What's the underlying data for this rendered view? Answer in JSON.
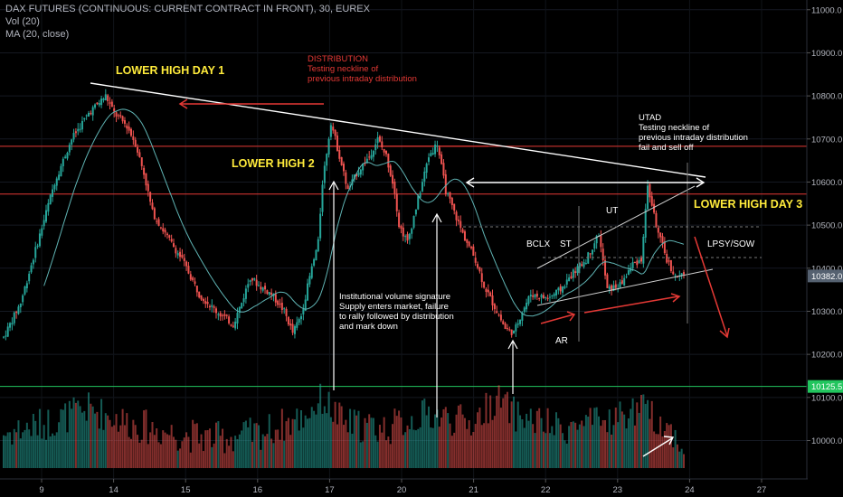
{
  "legend": {
    "symbol": "DAX FUTURES (CONTINUOUS: CURRENT CONTRACT IN FRONT), 30, EUREX",
    "volume": "Vol (20)",
    "ma": "MA (20, close)"
  },
  "colors": {
    "up": "#26a69a",
    "down": "#ef5350",
    "ma": "#5fb3b3",
    "background": "#000000",
    "resistance": "#e53935",
    "support": "#22c55e",
    "annotation_yellow": "#ffeb3b",
    "annotation_red": "#e53935",
    "price_badge": "#556170"
  },
  "chart_data": {
    "type": "candlestick",
    "y_axis": {
      "ticks": [
        11000,
        10900,
        10800,
        10700,
        10600,
        10500,
        10400,
        10300,
        10200,
        10100,
        10000
      ],
      "tick_labels": [
        "11000.0",
        "10900.0",
        "10800.0",
        "10700.0",
        "10600.0",
        "10500.0",
        "10400.0",
        "10300.0",
        "10200.0",
        "10100.0",
        "10000.0"
      ],
      "ylim": [
        9936,
        11010
      ]
    },
    "x_axis": {
      "ticks": [
        "9",
        "14",
        "15",
        "16",
        "17",
        "20",
        "21",
        "22",
        "23",
        "24",
        "27"
      ]
    },
    "price_badges": [
      {
        "label": "10382.0",
        "value": 10382
      },
      {
        "label": "10125.5",
        "value": 10125.5
      }
    ],
    "horizontal_levels": [
      {
        "value": 10683,
        "color": "#e53935"
      },
      {
        "value": 10572,
        "color": "#e53935"
      },
      {
        "value": 10125.5,
        "color": "#22c55e"
      }
    ],
    "price_path": [
      [
        0,
        10240
      ],
      [
        8,
        10320
      ],
      [
        16,
        10460
      ],
      [
        24,
        10600
      ],
      [
        32,
        10700
      ],
      [
        40,
        10760
      ],
      [
        48,
        10800
      ],
      [
        52,
        10760
      ],
      [
        58,
        10730
      ],
      [
        62,
        10690
      ],
      [
        66,
        10620
      ],
      [
        70,
        10530
      ],
      [
        76,
        10480
      ],
      [
        84,
        10420
      ],
      [
        92,
        10340
      ],
      [
        100,
        10300
      ],
      [
        108,
        10270
      ],
      [
        112,
        10320
      ],
      [
        116,
        10380
      ],
      [
        120,
        10360
      ],
      [
        126,
        10340
      ],
      [
        132,
        10300
      ],
      [
        136,
        10250
      ],
      [
        140,
        10290
      ],
      [
        144,
        10380
      ],
      [
        148,
        10460
      ],
      [
        150,
        10600
      ],
      [
        154,
        10740
      ],
      [
        158,
        10660
      ],
      [
        162,
        10580
      ],
      [
        166,
        10620
      ],
      [
        172,
        10660
      ],
      [
        176,
        10700
      ],
      [
        180,
        10660
      ],
      [
        184,
        10580
      ],
      [
        186,
        10500
      ],
      [
        190,
        10460
      ],
      [
        196,
        10580
      ],
      [
        200,
        10660
      ],
      [
        204,
        10690
      ],
      [
        208,
        10580
      ],
      [
        212,
        10530
      ],
      [
        216,
        10480
      ],
      [
        222,
        10420
      ],
      [
        226,
        10360
      ],
      [
        232,
        10300
      ],
      [
        236,
        10260
      ],
      [
        240,
        10250
      ],
      [
        244,
        10300
      ],
      [
        248,
        10340
      ],
      [
        256,
        10330
      ],
      [
        262,
        10350
      ],
      [
        268,
        10390
      ],
      [
        274,
        10420
      ],
      [
        280,
        10480
      ],
      [
        284,
        10350
      ],
      [
        290,
        10360
      ],
      [
        296,
        10410
      ],
      [
        300,
        10420
      ],
      [
        303,
        10590
      ],
      [
        308,
        10480
      ],
      [
        312,
        10420
      ],
      [
        316,
        10380
      ],
      [
        320,
        10382
      ]
    ],
    "ma_period": 20,
    "volume_profile": [
      [
        0,
        0.35
      ],
      [
        20,
        0.45
      ],
      [
        40,
        0.6
      ],
      [
        60,
        0.45
      ],
      [
        80,
        0.35
      ],
      [
        100,
        0.3
      ],
      [
        120,
        0.35
      ],
      [
        140,
        0.5
      ],
      [
        150,
        0.7
      ],
      [
        160,
        0.45
      ],
      [
        180,
        0.4
      ],
      [
        200,
        0.55
      ],
      [
        220,
        0.45
      ],
      [
        232,
        0.7
      ],
      [
        240,
        0.55
      ],
      [
        260,
        0.4
      ],
      [
        280,
        0.45
      ],
      [
        300,
        0.6
      ],
      [
        310,
        0.45
      ],
      [
        320,
        0.25
      ]
    ]
  },
  "annotations": {
    "lower_high_1": "LOWER HIGH DAY 1",
    "lower_high_2": "LOWER HIGH 2",
    "lower_high_3": "LOWER HIGH DAY 3",
    "distribution_title": "DISTRIBUTION",
    "distribution_line1": "Testing neckline of",
    "distribution_line2": "previous intraday distribution",
    "utad_title": "UTAD",
    "utad_line1": "Testing neckline of",
    "utad_line2": "previous intraday distribution",
    "utad_line3": "fail and sell off",
    "institutional_line1": "Institutional volume signature",
    "institutional_line2": "Supply enters market, failure",
    "institutional_line3": "to rally followed by distribution",
    "institutional_line4": "and mark down",
    "bclx": "BCLX",
    "st": "ST",
    "ut": "UT",
    "lpsy": "LPSY/SOW",
    "ar": "AR"
  }
}
